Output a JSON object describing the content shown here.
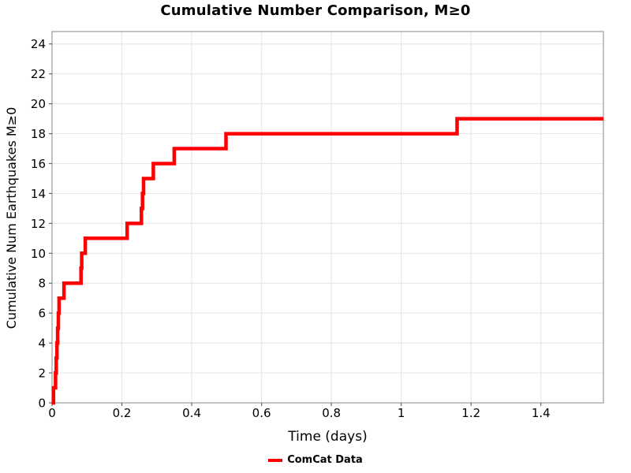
{
  "chart_data": {
    "type": "line",
    "subtype": "step-post-cumulative",
    "title": "Cumulative Number Comparison, M≥0",
    "xlabel": "Time (days)",
    "ylabel": "Cumulative Num Earthquakes M≥0",
    "legend": {
      "position": "bottom-center",
      "entries": [
        {
          "label": "ComCat Data",
          "color": "#ff0000"
        }
      ]
    },
    "xlim": [
      0,
      1.579
    ],
    "ylim": [
      0,
      24.83
    ],
    "xticks": [
      0,
      0.2,
      0.4,
      0.6,
      0.8,
      1,
      1.2,
      1.4
    ],
    "xtick_labels": [
      "0",
      "0.2",
      "0.4",
      "0.6",
      "0.8",
      "1",
      "1.2",
      "1.4"
    ],
    "yticks": [
      0,
      2,
      4,
      6,
      8,
      10,
      12,
      14,
      16,
      18,
      20,
      22,
      24
    ],
    "grid": true,
    "grid_color": "#e8e8e8",
    "spine_color": "#9b9b9b",
    "tick_color": "#666666",
    "background": "#ffffff",
    "text_color": "#000000",
    "series": [
      {
        "name": "ComCat Data",
        "color": "#ff0000",
        "line_width": 4.5,
        "start": [
          0,
          0
        ],
        "step_events": [
          [
            0.004,
            1
          ],
          [
            0.01,
            2
          ],
          [
            0.012,
            3
          ],
          [
            0.014,
            4
          ],
          [
            0.016,
            5
          ],
          [
            0.018,
            6
          ],
          [
            0.02,
            7
          ],
          [
            0.034,
            8
          ],
          [
            0.083,
            9
          ],
          [
            0.085,
            10
          ],
          [
            0.095,
            11
          ],
          [
            0.215,
            12
          ],
          [
            0.256,
            13
          ],
          [
            0.259,
            14
          ],
          [
            0.262,
            15
          ],
          [
            0.29,
            16
          ],
          [
            0.35,
            17
          ],
          [
            0.498,
            18
          ],
          [
            1.16,
            19
          ]
        ],
        "end_time": 1.579,
        "final_value": 19
      }
    ]
  }
}
